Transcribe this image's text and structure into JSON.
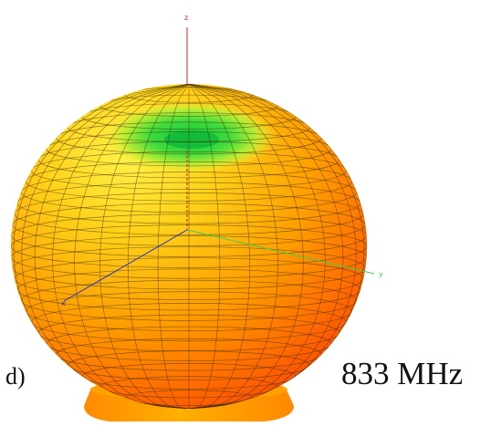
{
  "panel_label": "d)",
  "frequency_label": "833 MHz",
  "axes": {
    "x_label": "x",
    "y_label": "y",
    "z_label": "z"
  },
  "colors": {
    "axis_x": "#2233cc",
    "axis_y": "#44cc44",
    "axis_z": "#cc2222",
    "pattern_high": "#ff3a00",
    "pattern_mid": "#ffb400",
    "pattern_low": "#22d24a",
    "base": "#ff9f00",
    "mesh": "#3a2a10"
  }
}
